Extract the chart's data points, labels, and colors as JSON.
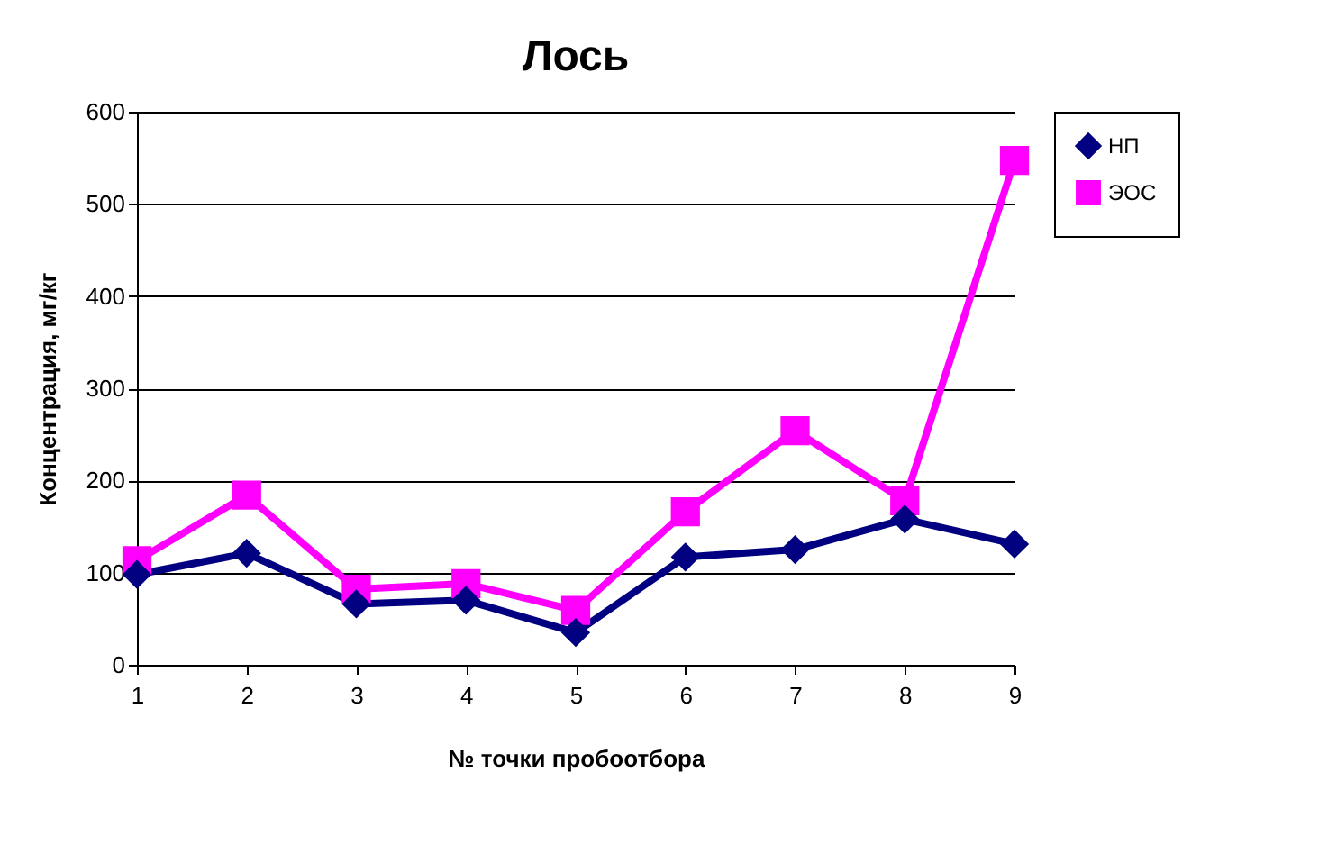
{
  "chart_data": {
    "type": "line",
    "title": "Лось",
    "xlabel": "№ точки пробоотбора",
    "ylabel": "Концентрация, мг/кг",
    "categories": [
      "1",
      "2",
      "3",
      "4",
      "5",
      "6",
      "7",
      "8",
      "9"
    ],
    "ylim": [
      0,
      600
    ],
    "yticks": [
      0,
      100,
      200,
      300,
      400,
      500,
      600
    ],
    "grid": "y",
    "legend": "right",
    "line_style": "solid",
    "series": [
      {
        "name": "НП",
        "color": "#000080",
        "marker": "diamond",
        "values": [
          98,
          121,
          66,
          70,
          35,
          117,
          125,
          158,
          131
        ]
      },
      {
        "name": "ЭОС",
        "color": "#ff00ff",
        "marker": "square",
        "values": [
          113,
          184,
          82,
          88,
          59,
          166,
          254,
          178,
          547
        ]
      }
    ]
  }
}
